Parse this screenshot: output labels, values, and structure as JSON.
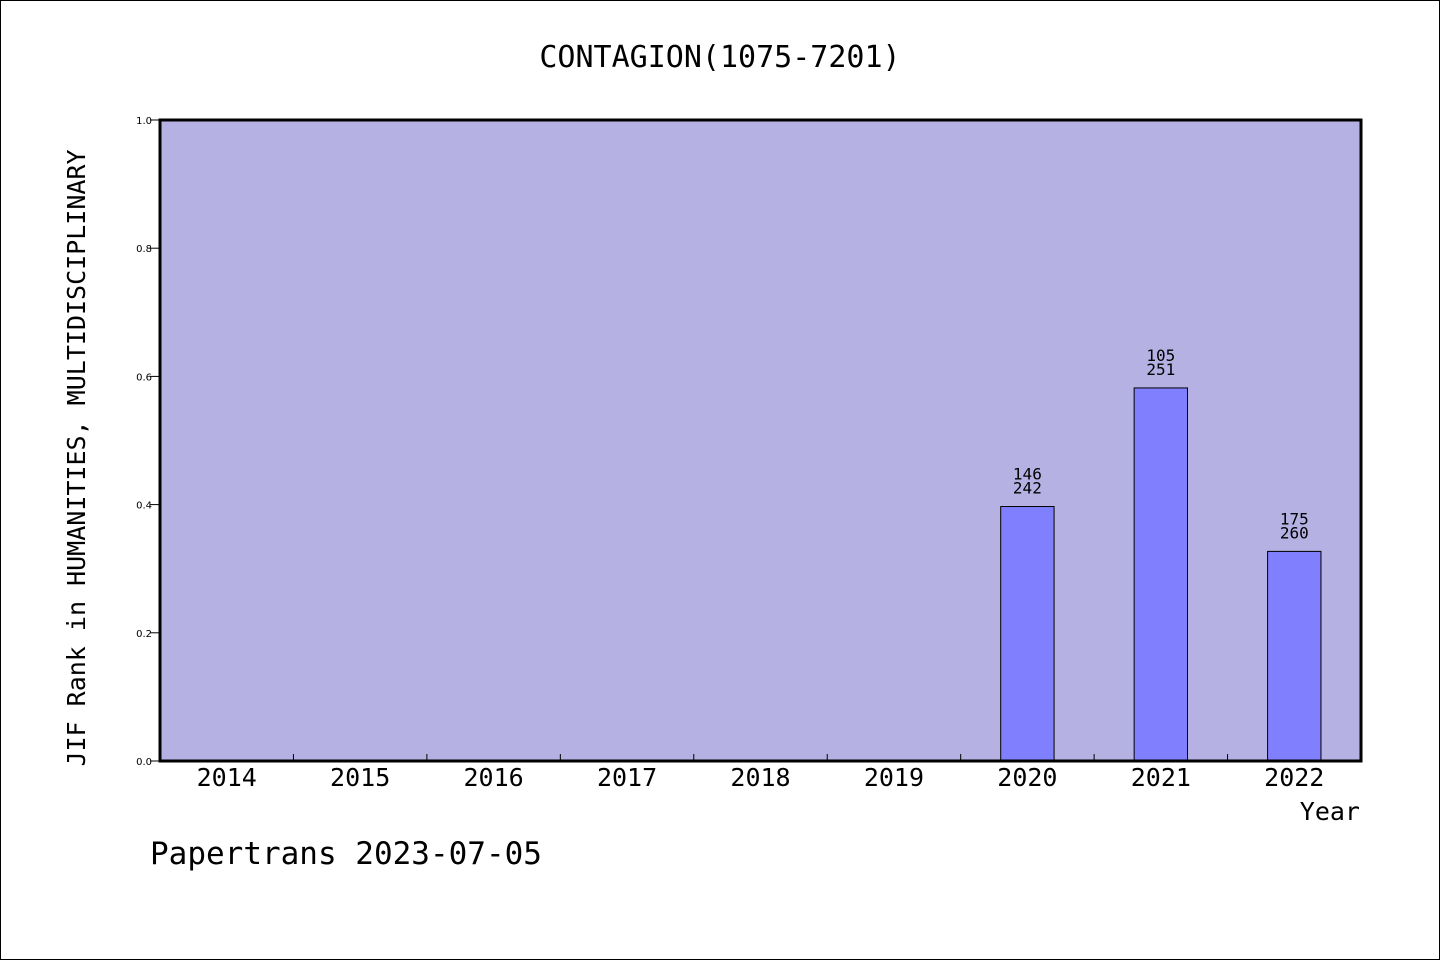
{
  "chart_data": {
    "type": "bar",
    "title": "CONTAGION(1075-7201)",
    "xlabel": "Year",
    "ylabel": "JIF Rank in HUMANITIES, MULTIDISCIPLINARY",
    "categories": [
      "2014",
      "2015",
      "2016",
      "2017",
      "2018",
      "2019",
      "2020",
      "2021",
      "2022"
    ],
    "values": [
      null,
      null,
      null,
      null,
      null,
      null,
      0.397,
      0.582,
      0.327
    ],
    "bar_labels": [
      null,
      null,
      null,
      null,
      null,
      null,
      {
        "rank": "146",
        "total": "242"
      },
      {
        "rank": "105",
        "total": "251"
      },
      {
        "rank": "175",
        "total": "260"
      }
    ],
    "ylim": [
      0,
      1.0
    ],
    "yticks": [
      "0.0",
      "0.2",
      "0.4",
      "0.6",
      "0.8",
      "1.0"
    ],
    "grid": false,
    "legend": "none",
    "colors": {
      "plot_background": "#b6b1e3",
      "bar_fill": "#8080ff",
      "bar_edge": "#000000",
      "axis": "#000000"
    }
  },
  "footer": {
    "watermark": "Papertrans 2023-07-05"
  }
}
